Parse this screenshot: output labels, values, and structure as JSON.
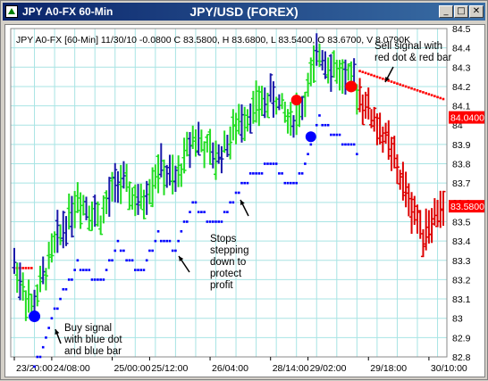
{
  "window": {
    "title": "JPY A0-FX 60-Min",
    "chart_title": "JPY/USD (FOREX)",
    "icons": [
      "app-icon",
      "minimize-icon",
      "maximize-icon",
      "close-icon"
    ]
  },
  "colors": {
    "up_bar": "#22dd22",
    "down_bar": "#1a1aaa",
    "sell_bar": "#dd0000",
    "buy_dot": "#0000ff",
    "sell_dot": "#ff0000",
    "grid": "#a8e4e4",
    "price_box": "#ff0000"
  },
  "chart_data": {
    "type": "bar",
    "info_line": "JPY A0-FX [60-Min] 11/30/10 -0.0800 C 83.5800, H 83.6800, L 83.5400, O 83.6700, V 8.0790K",
    "ylim": [
      82.8,
      84.5
    ],
    "yticks": [
      "84.5",
      "84.4",
      "84.3",
      "84.2",
      "84.1",
      "84",
      "83.9",
      "83.8",
      "83.7",
      "83.6",
      "83.5",
      "83.4",
      "83.3",
      "83.2",
      "83.1",
      "83",
      "82.9",
      "82.8"
    ],
    "ytick_values": [
      84.5,
      84.4,
      84.3,
      84.2,
      84.1,
      84.0,
      83.9,
      83.8,
      83.7,
      83.6,
      83.5,
      83.4,
      83.3,
      83.2,
      83.1,
      83.0,
      82.9,
      82.8
    ],
    "xticks": [
      "23/20:00",
      "24/08:00",
      "25/00:00",
      "25/12:00",
      "26/04:00",
      "28/14:00",
      "29/02:00",
      "29/18:00",
      "30/10:00"
    ],
    "xtick_positions": [
      0,
      13,
      34,
      47,
      68,
      89,
      102,
      123,
      144
    ],
    "price_labels": [
      {
        "text": "84.0400",
        "value": 84.04
      },
      {
        "text": "83.5800",
        "value": 83.58
      }
    ],
    "annotations": [
      {
        "id": "sell",
        "text": [
          "Sell signal with",
          "red dot & red bar"
        ]
      },
      {
        "id": "stops",
        "text": [
          "Stops",
          "stepping",
          "down to",
          "protect",
          "profit"
        ]
      },
      {
        "id": "buy",
        "text": [
          "Buy signal",
          "with blue dot",
          "and blue bar"
        ]
      }
    ],
    "buy_signal": {
      "x": 7,
      "y": 83.01
    },
    "sell_signal": {
      "x": 117,
      "y": 84.2
    },
    "extra_signals": [
      {
        "x": 98,
        "y": 84.13,
        "color": "sell"
      },
      {
        "x": 103,
        "y": 83.94,
        "color": "buy"
      }
    ]
  }
}
